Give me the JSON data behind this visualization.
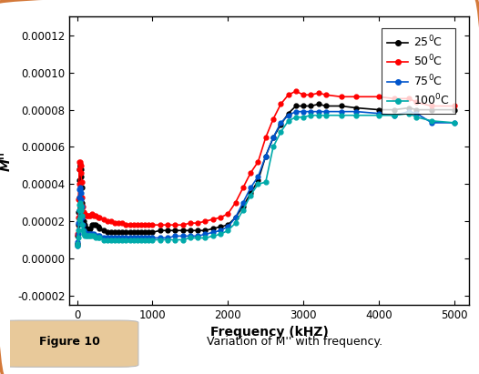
{
  "xlabel": "Frequency (kHZ)",
  "ylabel": "M''",
  "xlim": [
    -100,
    5200
  ],
  "ylim": [
    -2.5e-05,
    0.00013
  ],
  "yticks": [
    -2e-05,
    0.0,
    2e-05,
    4e-05,
    6e-05,
    8e-05,
    0.0001,
    0.00012
  ],
  "xticks": [
    0,
    1000,
    2000,
    3000,
    4000,
    5000
  ],
  "legend_labels": [
    "25$^0$C",
    "50$^0$C",
    "75$^0$C",
    "100$^0$C"
  ],
  "colors": [
    "#000000",
    "#ff0000",
    "#0055cc",
    "#00aaaa"
  ],
  "series": {
    "25C": {
      "x": [
        5,
        10,
        15,
        20,
        25,
        30,
        35,
        40,
        45,
        50,
        55,
        60,
        70,
        80,
        90,
        100,
        120,
        140,
        160,
        180,
        200,
        220,
        250,
        280,
        300,
        350,
        400,
        450,
        500,
        550,
        600,
        650,
        700,
        750,
        800,
        850,
        900,
        950,
        1000,
        1100,
        1200,
        1300,
        1400,
        1500,
        1600,
        1700,
        1800,
        1900,
        2000,
        2100,
        2200,
        2300,
        2400,
        2500,
        2600,
        2700,
        2800,
        2900,
        3000,
        3100,
        3200,
        3300,
        3500,
        3700,
        4000,
        4200,
        4400,
        4500,
        4700,
        5000
      ],
      "y": [
        8e-06,
        1.2e-05,
        1.8e-05,
        2.5e-05,
        3.3e-05,
        4.2e-05,
        4.8e-05,
        5e-05,
        5e-05,
        4.8e-05,
        4.4e-05,
        3.8e-05,
        3e-05,
        2.4e-05,
        2e-05,
        1.8e-05,
        1.6e-05,
        1.5e-05,
        1.5e-05,
        1.6e-05,
        1.8e-05,
        1.8e-05,
        1.8e-05,
        1.7e-05,
        1.6e-05,
        1.5e-05,
        1.4e-05,
        1.4e-05,
        1.4e-05,
        1.4e-05,
        1.4e-05,
        1.4e-05,
        1.4e-05,
        1.4e-05,
        1.4e-05,
        1.4e-05,
        1.4e-05,
        1.4e-05,
        1.4e-05,
        1.5e-05,
        1.5e-05,
        1.5e-05,
        1.5e-05,
        1.5e-05,
        1.5e-05,
        1.5e-05,
        1.6e-05,
        1.7e-05,
        1.8e-05,
        2.2e-05,
        2.8e-05,
        3.5e-05,
        4.2e-05,
        5.5e-05,
        6.5e-05,
        7.2e-05,
        7.8e-05,
        8.2e-05,
        8.2e-05,
        8.2e-05,
        8.3e-05,
        8.2e-05,
        8.2e-05,
        8.1e-05,
        8e-05,
        8e-05,
        8.1e-05,
        8e-05,
        8e-05,
        8e-05
      ]
    },
    "50C": {
      "x": [
        5,
        10,
        15,
        20,
        25,
        30,
        35,
        40,
        45,
        50,
        55,
        60,
        70,
        80,
        90,
        100,
        120,
        140,
        160,
        180,
        200,
        220,
        250,
        280,
        300,
        350,
        400,
        450,
        500,
        550,
        600,
        650,
        700,
        750,
        800,
        850,
        900,
        950,
        1000,
        1100,
        1200,
        1300,
        1400,
        1500,
        1600,
        1700,
        1800,
        1900,
        2000,
        2100,
        2200,
        2300,
        2400,
        2500,
        2600,
        2700,
        2800,
        2900,
        3000,
        3100,
        3200,
        3300,
        3500,
        3700,
        4000,
        4200,
        4400,
        4500,
        4700,
        5000
      ],
      "y": [
        8e-06,
        1.3e-05,
        2.2e-05,
        3.2e-05,
        4e-05,
        4.8e-05,
        5.2e-05,
        5.2e-05,
        5.1e-05,
        5e-05,
        4.6e-05,
        4.1e-05,
        3.3e-05,
        2.8e-05,
        2.5e-05,
        2.4e-05,
        2.3e-05,
        2.3e-05,
        2.3e-05,
        2.3e-05,
        2.4e-05,
        2.3e-05,
        2.3e-05,
        2.2e-05,
        2.2e-05,
        2.1e-05,
        2e-05,
        2e-05,
        1.9e-05,
        1.9e-05,
        1.9e-05,
        1.8e-05,
        1.8e-05,
        1.8e-05,
        1.8e-05,
        1.8e-05,
        1.8e-05,
        1.8e-05,
        1.8e-05,
        1.8e-05,
        1.8e-05,
        1.8e-05,
        1.8e-05,
        1.9e-05,
        1.9e-05,
        2e-05,
        2.1e-05,
        2.2e-05,
        2.4e-05,
        3e-05,
        3.8e-05,
        4.6e-05,
        5.2e-05,
        6.5e-05,
        7.5e-05,
        8.3e-05,
        8.8e-05,
        9e-05,
        8.8e-05,
        8.8e-05,
        8.9e-05,
        8.8e-05,
        8.7e-05,
        8.7e-05,
        8.7e-05,
        8.6e-05,
        8.6e-05,
        8.4e-05,
        8.2e-05,
        8.2e-05
      ]
    },
    "75C": {
      "x": [
        5,
        10,
        15,
        20,
        25,
        30,
        35,
        40,
        45,
        50,
        55,
        60,
        70,
        80,
        90,
        100,
        120,
        140,
        160,
        180,
        200,
        220,
        250,
        280,
        300,
        350,
        400,
        450,
        500,
        550,
        600,
        650,
        700,
        750,
        800,
        850,
        900,
        950,
        1000,
        1100,
        1200,
        1300,
        1400,
        1500,
        1600,
        1700,
        1800,
        1900,
        2000,
        2100,
        2200,
        2300,
        2400,
        2500,
        2600,
        2700,
        2800,
        2900,
        3000,
        3100,
        3200,
        3300,
        3500,
        3700,
        4000,
        4200,
        4400,
        4500,
        4700,
        5000
      ],
      "y": [
        7e-06,
        9e-06,
        1.3e-05,
        1.9e-05,
        2.6e-05,
        3.3e-05,
        3.7e-05,
        3.8e-05,
        3.7e-05,
        3.5e-05,
        3.2e-05,
        2.8e-05,
        2.2e-05,
        1.8e-05,
        1.5e-05,
        1.4e-05,
        1.3e-05,
        1.3e-05,
        1.3e-05,
        1.3e-05,
        1.3e-05,
        1.3e-05,
        1.2e-05,
        1.2e-05,
        1.2e-05,
        1.1e-05,
        1.1e-05,
        1.1e-05,
        1.1e-05,
        1.1e-05,
        1.1e-05,
        1.1e-05,
        1.1e-05,
        1.1e-05,
        1.1e-05,
        1.1e-05,
        1.1e-05,
        1.1e-05,
        1.1e-05,
        1.1e-05,
        1.1e-05,
        1.2e-05,
        1.2e-05,
        1.2e-05,
        1.2e-05,
        1.3e-05,
        1.4e-05,
        1.5e-05,
        1.7e-05,
        2.2e-05,
        3e-05,
        3.8e-05,
        4.4e-05,
        5.5e-05,
        6.5e-05,
        7.3e-05,
        7.7e-05,
        7.9e-05,
        7.9e-05,
        7.9e-05,
        7.9e-05,
        7.9e-05,
        7.9e-05,
        7.9e-05,
        7.8e-05,
        7.7e-05,
        7.9e-05,
        7.8e-05,
        7.3e-05,
        7.3e-05
      ]
    },
    "100C": {
      "x": [
        5,
        10,
        15,
        20,
        25,
        30,
        35,
        40,
        45,
        50,
        55,
        60,
        70,
        80,
        90,
        100,
        120,
        140,
        160,
        180,
        200,
        220,
        250,
        280,
        300,
        350,
        400,
        450,
        500,
        550,
        600,
        650,
        700,
        750,
        800,
        850,
        900,
        950,
        1000,
        1100,
        1200,
        1300,
        1400,
        1500,
        1600,
        1700,
        1800,
        1900,
        2000,
        2100,
        2200,
        2300,
        2400,
        2500,
        2600,
        2700,
        2800,
        2900,
        3000,
        3100,
        3200,
        3300,
        3500,
        3700,
        4000,
        4200,
        4400,
        4500,
        4700,
        5000
      ],
      "y": [
        7e-06,
        8e-06,
        1.1e-05,
        1.5e-05,
        2.1e-05,
        2.6e-05,
        2.9e-05,
        3e-05,
        2.9e-05,
        2.8e-05,
        2.6e-05,
        2.3e-05,
        1.8e-05,
        1.5e-05,
        1.3e-05,
        1.2e-05,
        1.2e-05,
        1.2e-05,
        1.2e-05,
        1.2e-05,
        1.2e-05,
        1.2e-05,
        1.1e-05,
        1.1e-05,
        1.1e-05,
        1e-05,
        1e-05,
        1e-05,
        1e-05,
        1e-05,
        1e-05,
        1e-05,
        1e-05,
        1e-05,
        1e-05,
        1e-05,
        1e-05,
        1e-05,
        1e-05,
        1e-05,
        1e-05,
        1e-05,
        1e-05,
        1.1e-05,
        1.1e-05,
        1.1e-05,
        1.2e-05,
        1.3e-05,
        1.5e-05,
        1.9e-05,
        2.6e-05,
        3.4e-05,
        4e-05,
        4.1e-05,
        6e-05,
        6.8e-05,
        7.4e-05,
        7.6e-05,
        7.6e-05,
        7.7e-05,
        7.7e-05,
        7.7e-05,
        7.7e-05,
        7.7e-05,
        7.7e-05,
        7.7e-05,
        7.8e-05,
        7.6e-05,
        7.4e-05,
        7.3e-05
      ]
    }
  },
  "figure_caption": "Figure 10",
  "caption_text": "Variation of M'' with frequency.",
  "bg_color": "#ffffff",
  "outer_border_color": "#d4793a",
  "figure_label_bg": "#e8c99a"
}
